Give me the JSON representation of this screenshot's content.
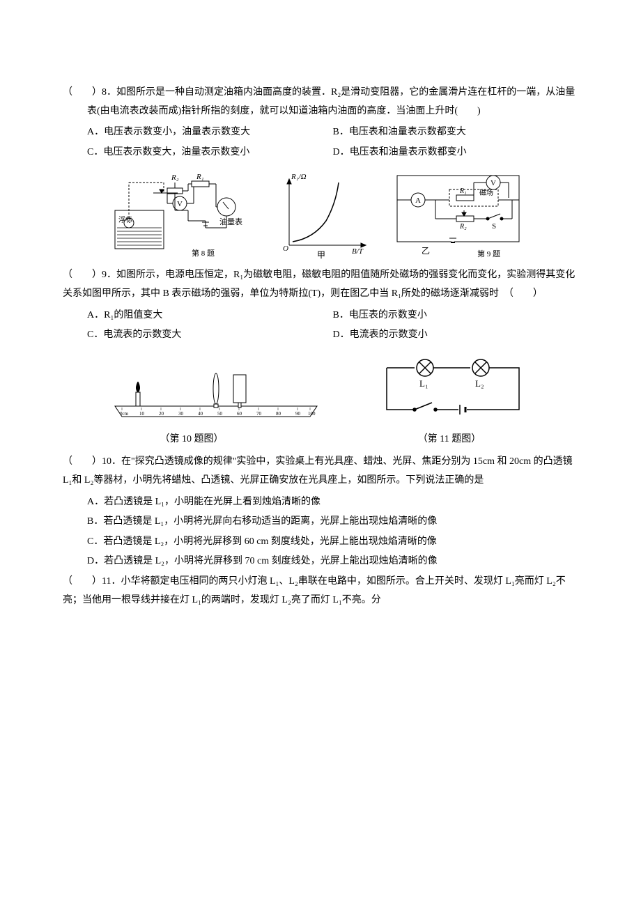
{
  "q8": {
    "prefix": "（　　）8．",
    "stem1": "如图所示是一种自动测定油箱内油面高度的装置．R₂是滑动变阻器，它的金属滑片连在杠杆的一端，从油量表(由电流表改装而成)指针所指的刻度，就可以知道油箱内油面的高度．当油面上升时(　　)",
    "optA": "A．电压表示数变小，油量表示数变大",
    "optB": "B．电压表和油量表示数都变大",
    "optC": "C．电压表示数变大，油量表示数变小",
    "optD": "D．电压表和油量表示数都变小",
    "fig_left": {
      "label_R2": "R₂",
      "label_R1": "R₁",
      "label_V": "V",
      "label_meter": "油量表",
      "label_float": "浮标",
      "caption": "第 8 题"
    },
    "fig_mid": {
      "ylabel": "R₁/Ω",
      "xlabel": "B/T",
      "origin": "O",
      "caption": "甲"
    },
    "fig_right": {
      "label_V": "V",
      "label_A": "A",
      "label_R1": "R₁",
      "label_mag": "磁场",
      "label_R2": "R₂",
      "label_S": "S",
      "caption": "乙",
      "caption2": "第 9 题"
    }
  },
  "q9": {
    "prefix": "（　　）9．",
    "stem": "如图所示，电源电压恒定，R₁为磁敏电阻，磁敏电阻的阻值随所处磁场的强弱变化而变化，实验测得其变化关系如图甲所示，其中 B 表示磁场的强弱，单位为特斯拉(T)，则在图乙中当 R₁所处的磁场逐渐减弱时　（　　）",
    "optA": "A．R₁的阻值变大",
    "optB": "B．电压表的示数变小",
    "optC": "C．电流表的示数变大",
    "optD": "D．电流表的示数变小"
  },
  "q10": {
    "fig": {
      "labels_L1": "L₁",
      "labels_L2": "L₂"
    },
    "caption_left": "（第 10 题图）",
    "caption_right": "（第 11 题图）",
    "prefix": "（　　）10．",
    "stem": "在\"探究凸透镜成像的规律\"实验中，实验桌上有光具座、蜡烛、光屏、焦距分别为 15cm 和 20cm 的凸透镜 L₁和 L₂等器材，小明先将蜡烛、凸透镜、光屏正确安放在光具座上，如图所示。下列说法正确的是",
    "optA": "A．若凸透镜是 L₁，小明能在光屏上看到烛焰清晰的像",
    "optB": "B．若凸透镜是 L₁，小明将光屏向右移动适当的距离，光屏上能出现烛焰清晰的像",
    "optC": "C．若凸透镜是 L₂，小明将光屏移到 60 cm 刻度线处，光屏上能出现烛焰清晰的像",
    "optD": "D．若凸透镜是 L₂，小明将光屏移到 70 cm 刻度线处，光屏上能出现烛焰清晰的像"
  },
  "q11": {
    "prefix": "（　　）11．",
    "stem": "小华将额定电压相同的两只小灯泡 L₁、L₂串联在电路中，如图所示。合上开关时、发现灯 L₁亮而灯 L₂不亮；当他用一根导线并接在灯 L₁的两端时，发现灯 L₂亮了而灯 L₁不亮。分"
  },
  "ruler_ticks": [
    "0cm",
    "10",
    "20",
    "30",
    "40",
    "50",
    "60",
    "70",
    "80",
    "90",
    "100"
  ]
}
